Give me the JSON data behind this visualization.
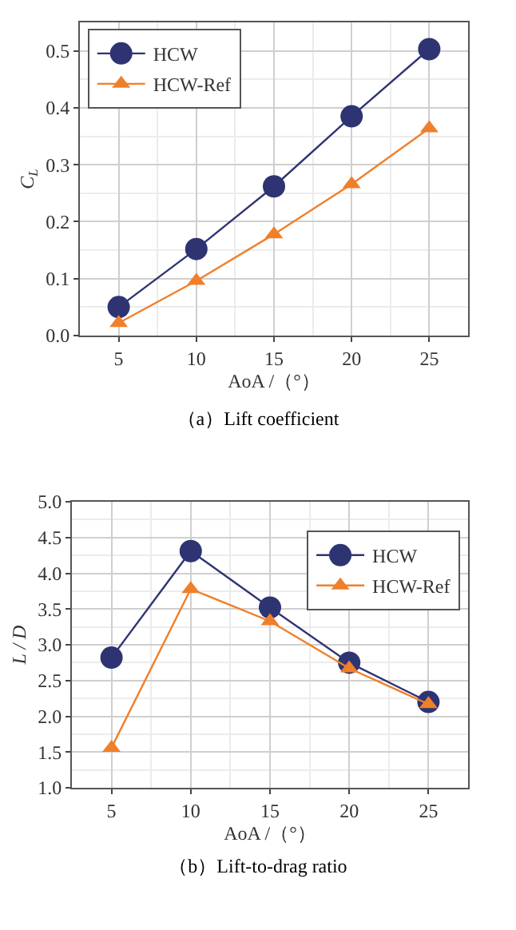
{
  "chart_data": [
    {
      "type": "line",
      "title": "（a）Lift coefficient",
      "xlabel": "AoA /（°）",
      "ylabel": "C$_{L}$",
      "x": [
        5,
        10,
        15,
        20,
        25
      ],
      "xlim": [
        2.5,
        27.5
      ],
      "xticks": [
        5,
        10,
        15,
        20,
        25
      ],
      "ylim": [
        0,
        0.55
      ],
      "yticks": [
        {
          "value": 0,
          "label": "0.0"
        },
        0.1,
        0.2,
        0.3,
        0.4,
        0.5
      ],
      "grid": true,
      "legend": "top left",
      "series": [
        {
          "name": "HCW",
          "color": "#2e3472",
          "marker": "circle",
          "values": [
            0.05,
            0.152,
            0.262,
            0.385,
            0.503
          ]
        },
        {
          "name": "HCW-Ref",
          "color": "#f07f2a",
          "marker": "triangle",
          "values": [
            0.022,
            0.096,
            0.178,
            0.266,
            0.364
          ]
        }
      ]
    },
    {
      "type": "line",
      "title": "（b）Lift-to-drag ratio",
      "xlabel": "AoA /（°）",
      "ylabel": "L / D",
      "x": [
        5,
        10,
        15,
        20,
        25
      ],
      "xlim": [
        2.5,
        27.5
      ],
      "xticks": [
        5,
        10,
        15,
        20,
        25
      ],
      "ylim": [
        1,
        5
      ],
      "yticks": [
        {
          "value": 1,
          "label": "1.0"
        },
        1.5,
        {
          "value": 2,
          "label": "2.0"
        },
        2.5,
        {
          "value": 3,
          "label": "3.0"
        },
        3.5,
        {
          "value": 4,
          "label": "4.0"
        },
        4.5,
        {
          "value": 5,
          "label": "5.0"
        }
      ],
      "grid": true,
      "legend": "top right",
      "series": [
        {
          "name": "HCW",
          "color": "#2e3472",
          "marker": "circle",
          "values": [
            2.82,
            4.31,
            3.52,
            2.75,
            2.2
          ]
        },
        {
          "name": "HCW-Ref",
          "color": "#f07f2a",
          "marker": "triangle",
          "values": [
            1.56,
            3.78,
            3.33,
            2.67,
            2.17
          ]
        }
      ]
    }
  ]
}
